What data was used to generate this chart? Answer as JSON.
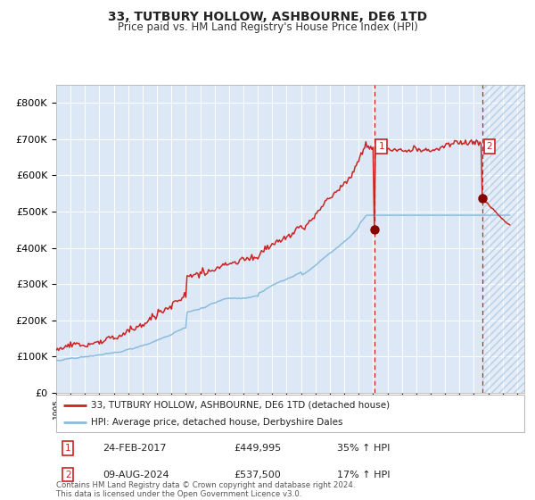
{
  "title": "33, TUTBURY HOLLOW, ASHBOURNE, DE6 1TD",
  "subtitle": "Price paid vs. HM Land Registry's House Price Index (HPI)",
  "ylim": [
    0,
    850000
  ],
  "yticks": [
    0,
    100000,
    200000,
    300000,
    400000,
    500000,
    600000,
    700000,
    800000
  ],
  "ytick_labels": [
    "£0",
    "£100K",
    "£200K",
    "£300K",
    "£400K",
    "£500K",
    "£600K",
    "£700K",
    "£800K"
  ],
  "hpi_color": "#8BBCDB",
  "price_color": "#CC2222",
  "bg_color": "#DCE8F5",
  "grid_color": "#FFFFFF",
  "vline_color": "#CC2222",
  "dot_color": "#880000",
  "point1_price": 449995,
  "point1_label": "24-FEB-2017",
  "point2_price": 537500,
  "point2_label": "09-AUG-2024",
  "legend_line1": "33, TUTBURY HOLLOW, ASHBOURNE, DE6 1TD (detached house)",
  "legend_line2": "HPI: Average price, detached house, Derbyshire Dales",
  "footer": "Contains HM Land Registry data © Crown copyright and database right 2024.\nThis data is licensed under the Open Government Licence v3.0.",
  "xmin": 1995.0,
  "xmax": 2027.5,
  "sale1_x": 2017.12,
  "sale2_x": 2024.62
}
